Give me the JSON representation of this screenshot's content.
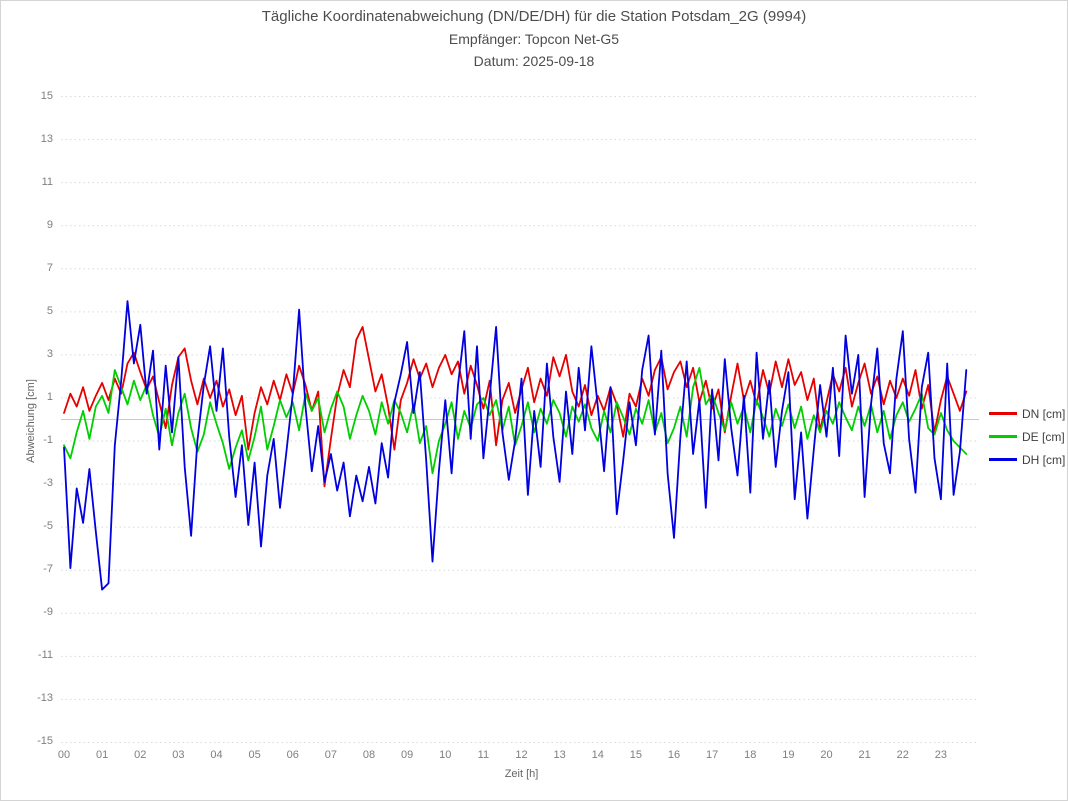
{
  "accent_colors": {
    "dn": "#e60000",
    "de": "#00ce00",
    "dh": "#0000e0",
    "grid": "#d9d9d9",
    "zero_line": "#c8c8c8",
    "tick_text": "#7f7f7f",
    "title_text": "#4d4d4d"
  },
  "chart_data": {
    "type": "line",
    "title": "Tägliche Koordinatenabweichung (DN/DE/DH) für die Station Potsdam_2G (9994)",
    "subtitle": "Empfänger: Topcon Net-G5",
    "date_line": "Datum: 2025-09-18",
    "xlabel": "Zeit [h]",
    "ylabel": "Abweichung [cm]",
    "xlim": [
      0,
      24
    ],
    "ylim": [
      -15,
      15
    ],
    "x_ticks": [
      "00",
      "01",
      "02",
      "03",
      "04",
      "05",
      "06",
      "07",
      "08",
      "09",
      "10",
      "11",
      "12",
      "13",
      "14",
      "15",
      "16",
      "17",
      "18",
      "19",
      "20",
      "21",
      "22",
      "23"
    ],
    "y_ticks": [
      15,
      13,
      11,
      9,
      7,
      5,
      3,
      1,
      -1,
      -3,
      -5,
      -7,
      -9,
      -11,
      -13,
      -15
    ],
    "grid": "horizontal-dotted",
    "zero_line": true,
    "legend_position": "right",
    "sample_interval_minutes": 10,
    "series": [
      {
        "name": "DN [cm]",
        "color": "#e60000",
        "values": [
          0.3,
          1.2,
          0.6,
          1.5,
          0.4,
          1.1,
          1.7,
          0.9,
          1.9,
          1.2,
          2.6,
          3.1,
          2.2,
          1.4,
          2.0,
          0.8,
          -0.4,
          1.6,
          2.9,
          3.3,
          1.8,
          0.7,
          1.9,
          1.0,
          1.8,
          0.6,
          1.4,
          0.2,
          1.1,
          -1.4,
          0.3,
          1.5,
          0.7,
          1.8,
          0.9,
          2.1,
          1.2,
          2.5,
          1.6,
          0.4,
          1.3,
          -3.1,
          -0.9,
          1.1,
          2.3,
          1.5,
          3.7,
          4.3,
          2.8,
          1.3,
          2.1,
          0.6,
          -1.4,
          0.9,
          1.7,
          2.8,
          1.9,
          2.6,
          1.5,
          2.4,
          3.0,
          2.1,
          2.7,
          1.2,
          2.5,
          1.6,
          0.5,
          1.8,
          -1.2,
          0.9,
          1.7,
          0.3,
          1.4,
          2.4,
          0.8,
          1.9,
          1.1,
          2.9,
          2.0,
          3.0,
          1.3,
          0.6,
          1.6,
          0.2,
          1.1,
          0.4,
          1.5,
          0.7,
          -0.8,
          1.2,
          0.6,
          1.9,
          1.1,
          2.3,
          2.9,
          1.4,
          2.2,
          2.7,
          1.5,
          2.4,
          0.8,
          1.8,
          0.5,
          1.4,
          -0.6,
          1.1,
          2.6,
          0.9,
          1.8,
          0.7,
          2.3,
          1.2,
          2.7,
          1.5,
          2.8,
          1.6,
          2.2,
          0.9,
          1.9,
          -0.5,
          0.8,
          2.1,
          1.3,
          2.4,
          0.6,
          1.7,
          2.6,
          1.2,
          2.0,
          0.7,
          1.8,
          1.0,
          1.9,
          1.1,
          2.3,
          0.5,
          1.6,
          -0.6,
          0.9,
          2.0,
          1.2,
          0.4,
          1.3
        ]
      },
      {
        "name": "DE [cm]",
        "color": "#00ce00",
        "values": [
          -1.2,
          -1.8,
          -0.6,
          0.4,
          -0.9,
          0.6,
          1.1,
          0.3,
          2.3,
          1.5,
          0.7,
          1.8,
          0.9,
          1.6,
          0.2,
          -0.8,
          0.5,
          -1.2,
          0.3,
          1.2,
          -0.4,
          -1.5,
          -0.7,
          0.8,
          -0.2,
          -1.1,
          -2.3,
          -1.3,
          -0.5,
          -1.9,
          -0.8,
          0.6,
          -1.4,
          -0.3,
          0.9,
          0.1,
          0.8,
          -0.5,
          1.2,
          0.4,
          1.0,
          -0.6,
          0.5,
          1.3,
          0.6,
          -0.9,
          0.2,
          1.1,
          0.4,
          -0.7,
          0.8,
          -0.2,
          0.9,
          0.3,
          -0.6,
          0.7,
          -1.1,
          -0.3,
          -2.5,
          -1.0,
          -0.2,
          0.8,
          -0.9,
          0.4,
          -0.4,
          0.7,
          1.0,
          0.2,
          0.9,
          -0.5,
          0.6,
          -1.2,
          -0.3,
          0.8,
          -0.6,
          0.5,
          -0.2,
          0.9,
          0.3,
          -0.8,
          0.6,
          -0.1,
          0.7,
          -0.4,
          -1.0,
          0.4,
          -0.6,
          0.8,
          0.1,
          -0.7,
          0.5,
          -0.2,
          0.9,
          -0.6,
          0.3,
          -1.1,
          -0.4,
          0.6,
          -0.8,
          1.5,
          2.4,
          0.7,
          1.2,
          0.3,
          -0.5,
          0.8,
          -0.2,
          0.6,
          -0.6,
          0.9,
          0.1,
          -0.8,
          0.5,
          -0.3,
          0.7,
          -0.4,
          0.6,
          -0.9,
          0.2,
          -0.6,
          0.4,
          -0.2,
          0.8,
          0.1,
          -0.5,
          0.6,
          -0.3,
          0.7,
          -0.6,
          0.4,
          -0.9,
          0.2,
          0.8,
          -0.1,
          0.5,
          1.2,
          -0.4,
          -0.7,
          0.3,
          -0.5,
          -1.0,
          -1.3,
          -1.6
        ]
      },
      {
        "name": "DH [cm]",
        "color": "#0000e0",
        "values": [
          -1.3,
          -6.9,
          -3.2,
          -4.8,
          -2.3,
          -5.2,
          -7.9,
          -7.6,
          -1.2,
          1.8,
          5.5,
          2.6,
          4.4,
          1.2,
          3.2,
          -1.4,
          2.5,
          -0.6,
          2.9,
          -2.2,
          -5.4,
          -1.0,
          1.6,
          3.4,
          0.4,
          3.3,
          -0.8,
          -3.6,
          -1.2,
          -4.9,
          -2.0,
          -5.9,
          -2.6,
          -0.9,
          -4.1,
          -1.5,
          1.2,
          5.1,
          0.6,
          -2.4,
          -0.3,
          -2.9,
          -1.6,
          -3.3,
          -2.0,
          -4.5,
          -2.6,
          -3.8,
          -2.2,
          -3.9,
          -1.1,
          -2.7,
          0.8,
          2.1,
          3.6,
          0.3,
          2.2,
          -1.9,
          -6.6,
          -2.4,
          0.9,
          -2.5,
          1.6,
          4.1,
          -0.9,
          3.4,
          -1.8,
          1.1,
          4.3,
          -0.6,
          -2.8,
          -1.0,
          1.9,
          -3.5,
          0.4,
          -2.2,
          2.6,
          -0.8,
          -2.9,
          1.3,
          -1.6,
          2.4,
          -0.5,
          3.4,
          0.6,
          -2.4,
          1.5,
          -4.4,
          -1.9,
          0.8,
          -1.2,
          2.3,
          3.9,
          -0.7,
          3.2,
          -2.5,
          -5.5,
          -0.8,
          2.7,
          -1.6,
          0.9,
          -4.1,
          1.4,
          -1.9,
          2.8,
          -0.4,
          -2.6,
          1.1,
          -3.4,
          3.1,
          -0.9,
          1.8,
          -2.2,
          0.4,
          2.2,
          -3.7,
          -0.6,
          -4.6,
          -1.4,
          1.6,
          -0.8,
          2.4,
          -1.7,
          3.9,
          1.2,
          3.0,
          -3.6,
          0.7,
          3.3,
          -1.1,
          -2.5,
          1.9,
          4.1,
          -0.9,
          -3.4,
          1.5,
          3.1,
          -1.8,
          -3.7,
          2.6,
          -3.5,
          -1.5,
          2.3
        ]
      }
    ]
  }
}
